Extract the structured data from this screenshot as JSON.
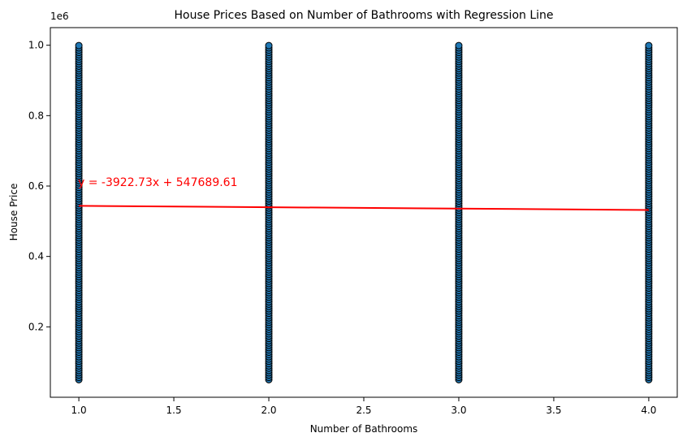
{
  "chart_data": {
    "type": "scatter",
    "title": "House Prices Based on Number of Bathrooms with Regression Line",
    "xlabel": "Number of Bathrooms",
    "ylabel": "House Price",
    "y_offset_label": "1e6",
    "xlim": [
      0.85,
      4.15
    ],
    "ylim": [
      0,
      1050000
    ],
    "x_ticks": [
      1.0,
      1.5,
      2.0,
      2.5,
      3.0,
      3.5,
      4.0
    ],
    "x_tick_labels": [
      "1.0",
      "1.5",
      "2.0",
      "2.5",
      "3.0",
      "3.5",
      "4.0"
    ],
    "y_ticks": [
      200000,
      400000,
      600000,
      800000,
      1000000
    ],
    "y_tick_labels": [
      "0.2",
      "0.4",
      "0.6",
      "0.8",
      "1.0"
    ],
    "grid": false,
    "series": [
      {
        "x_category_values": [
          1,
          2,
          3,
          4
        ],
        "y_range": [
          50000,
          1000000
        ],
        "marker_color": "#1f77b4",
        "marker_edge_color": "#000000"
      }
    ],
    "regression_line": {
      "slope": -3922.73,
      "intercept": 547689.61,
      "x_range": [
        1,
        4
      ],
      "color": "#ff0000"
    },
    "annotation": {
      "text": "y = -3922.73x + 547689.61",
      "x": 1.0,
      "y": 600000,
      "color": "#ff0000"
    }
  }
}
